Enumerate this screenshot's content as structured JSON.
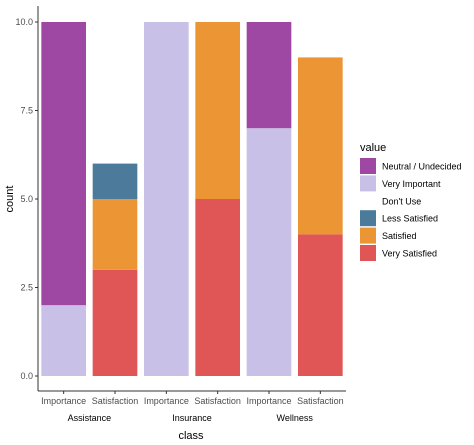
{
  "chart_data": {
    "type": "bar",
    "stacked": true,
    "xlabel": "class",
    "ylabel": "count",
    "ylim": [
      0,
      10
    ],
    "yticks": [
      0.0,
      2.5,
      5.0,
      7.5,
      10.0
    ],
    "ytick_labels": [
      "0.0",
      "2.5",
      "5.0",
      "7.5",
      "10.0"
    ],
    "grid": false,
    "legend_position": "right",
    "legend": {
      "title": "value",
      "entries": [
        {
          "label": "Neutral / Undecided",
          "color": "#9e47a3"
        },
        {
          "label": "Very Important",
          "color": "#c8c0e6"
        },
        {
          "label": "Don't Use",
          "color": "#ffffff"
        },
        {
          "label": "Less Satisfied",
          "color": "#4b7a9b"
        },
        {
          "label": "Satisfied",
          "color": "#ec9535"
        },
        {
          "label": "Very Satisfied",
          "color": "#e05555"
        }
      ]
    },
    "groups": [
      {
        "label": "Assistance",
        "categories": [
          "Importance",
          "Satisfaction"
        ]
      },
      {
        "label": "Insurance",
        "categories": [
          "Importance",
          "Satisfaction"
        ]
      },
      {
        "label": "Wellness",
        "categories": [
          "Importance",
          "Satisfaction"
        ]
      }
    ],
    "bars": [
      {
        "group": "Assistance",
        "category": "Importance",
        "segments": [
          {
            "series": "Very Important",
            "value": 2
          },
          {
            "series": "Neutral / Undecided",
            "value": 8
          }
        ]
      },
      {
        "group": "Assistance",
        "category": "Satisfaction",
        "segments": [
          {
            "series": "Very Satisfied",
            "value": 3
          },
          {
            "series": "Satisfied",
            "value": 2
          },
          {
            "series": "Less Satisfied",
            "value": 1
          }
        ]
      },
      {
        "group": "Insurance",
        "category": "Importance",
        "segments": [
          {
            "series": "Very Important",
            "value": 10
          }
        ]
      },
      {
        "group": "Insurance",
        "category": "Satisfaction",
        "segments": [
          {
            "series": "Very Satisfied",
            "value": 5
          },
          {
            "series": "Satisfied",
            "value": 5
          }
        ]
      },
      {
        "group": "Wellness",
        "category": "Importance",
        "segments": [
          {
            "series": "Very Important",
            "value": 7
          },
          {
            "series": "Neutral / Undecided",
            "value": 3
          }
        ]
      },
      {
        "group": "Wellness",
        "category": "Satisfaction",
        "segments": [
          {
            "series": "Very Satisfied",
            "value": 4
          },
          {
            "series": "Satisfied",
            "value": 5
          }
        ]
      }
    ]
  }
}
